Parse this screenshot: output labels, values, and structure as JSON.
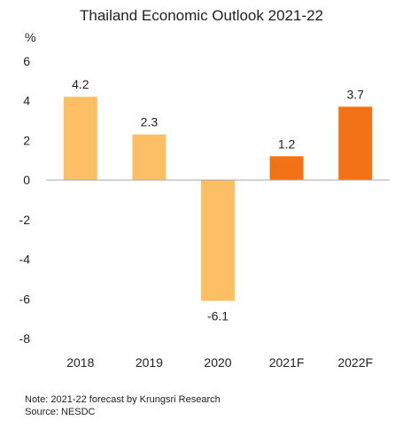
{
  "chart_data": {
    "type": "bar",
    "title": "Thailand Economic Outlook 2021-22",
    "ylabel": "%",
    "categories": [
      "2018",
      "2019",
      "2020",
      "2021F",
      "2022F"
    ],
    "values": [
      4.2,
      2.3,
      -6.1,
      1.2,
      3.7
    ],
    "data_labels": [
      "4.2",
      "2.3",
      "-6.1",
      "1.2",
      "3.7"
    ],
    "bar_colors": [
      "#FDBF64",
      "#FDBF64",
      "#FDBF64",
      "#F47216",
      "#F47216"
    ],
    "ylim": [
      -8,
      6
    ],
    "yticks": [
      6,
      4,
      2,
      0,
      -2,
      -4,
      -6,
      -8
    ],
    "ytick_labels": [
      "6",
      "4",
      "2",
      "0",
      "-2",
      "-4",
      "-6",
      "-8"
    ],
    "grid": false,
    "legend": "none"
  },
  "notes": {
    "note": "Note: 2021-22 forecast by Krungsri Research",
    "source": "Source: NESDC"
  }
}
